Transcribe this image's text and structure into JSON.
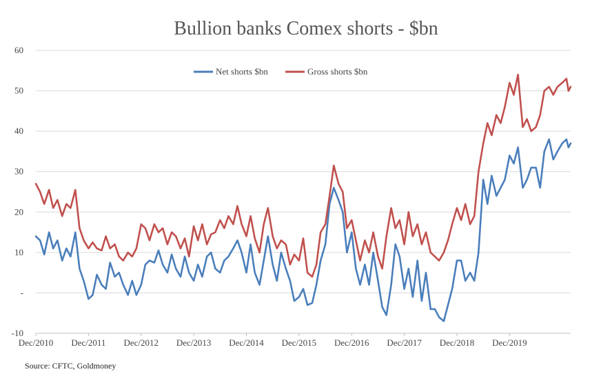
{
  "chart_data": {
    "type": "line",
    "title": "Bullion banks Comex shorts - $bn",
    "source": "Source: CFTC, Goldmoney",
    "ylim": [
      -10,
      60
    ],
    "y_ticks": [
      {
        "value": 60,
        "label": "60"
      },
      {
        "value": 50,
        "label": "50"
      },
      {
        "value": 40,
        "label": "40"
      },
      {
        "value": 30,
        "label": "30"
      },
      {
        "value": 20,
        "label": "20"
      },
      {
        "value": 10,
        "label": "10"
      },
      {
        "value": 0,
        "label": "-"
      },
      {
        "value": -10,
        "label": "-10"
      }
    ],
    "x_range": [
      2010.92,
      2021.08
    ],
    "x_ticks": [
      "Dec/2010",
      "Dec/2011",
      "Dec/2012",
      "Dec/2013",
      "Dec/2014",
      "Dec/2015",
      "Dec/2016",
      "Dec/2017",
      "Dec/2018",
      "Dec/2019"
    ],
    "x_tick_values": [
      2010.92,
      2011.92,
      2012.92,
      2013.92,
      2014.92,
      2015.92,
      2016.92,
      2017.92,
      2018.92,
      2019.92
    ],
    "grid": "horizontal",
    "legend_position": "top-center",
    "series": [
      {
        "name": "Net shorts $bn",
        "color": "#4a7ebb",
        "points": [
          [
            2010.92,
            14
          ],
          [
            2011.0,
            13
          ],
          [
            2011.08,
            9.5
          ],
          [
            2011.17,
            15
          ],
          [
            2011.25,
            11
          ],
          [
            2011.33,
            13
          ],
          [
            2011.42,
            8
          ],
          [
            2011.5,
            11
          ],
          [
            2011.58,
            9
          ],
          [
            2011.67,
            15
          ],
          [
            2011.75,
            6
          ],
          [
            2011.83,
            3
          ],
          [
            2011.92,
            -1.5
          ],
          [
            2012.0,
            -0.5
          ],
          [
            2012.08,
            4.5
          ],
          [
            2012.17,
            2
          ],
          [
            2012.25,
            1
          ],
          [
            2012.33,
            7.5
          ],
          [
            2012.42,
            4
          ],
          [
            2012.5,
            5
          ],
          [
            2012.58,
            2
          ],
          [
            2012.67,
            -0.5
          ],
          [
            2012.75,
            3
          ],
          [
            2012.83,
            -0.5
          ],
          [
            2012.92,
            2
          ],
          [
            2013.0,
            7
          ],
          [
            2013.08,
            8
          ],
          [
            2013.17,
            7.5
          ],
          [
            2013.25,
            10.5
          ],
          [
            2013.33,
            7
          ],
          [
            2013.42,
            5
          ],
          [
            2013.5,
            9.5
          ],
          [
            2013.58,
            6
          ],
          [
            2013.67,
            4
          ],
          [
            2013.75,
            9
          ],
          [
            2013.83,
            5
          ],
          [
            2013.92,
            3
          ],
          [
            2014.0,
            7
          ],
          [
            2014.08,
            4
          ],
          [
            2014.17,
            9
          ],
          [
            2014.25,
            10
          ],
          [
            2014.33,
            6
          ],
          [
            2014.42,
            5
          ],
          [
            2014.5,
            8
          ],
          [
            2014.58,
            9
          ],
          [
            2014.67,
            11
          ],
          [
            2014.75,
            13
          ],
          [
            2014.83,
            10
          ],
          [
            2014.92,
            5
          ],
          [
            2015.0,
            12
          ],
          [
            2015.08,
            5
          ],
          [
            2015.17,
            2
          ],
          [
            2015.25,
            8
          ],
          [
            2015.33,
            14
          ],
          [
            2015.42,
            7
          ],
          [
            2015.5,
            3
          ],
          [
            2015.58,
            10
          ],
          [
            2015.67,
            6
          ],
          [
            2015.75,
            3
          ],
          [
            2015.83,
            -2
          ],
          [
            2015.92,
            -1
          ],
          [
            2016.0,
            1
          ],
          [
            2016.08,
            -3
          ],
          [
            2016.17,
            -2.5
          ],
          [
            2016.25,
            2
          ],
          [
            2016.33,
            8
          ],
          [
            2016.42,
            12
          ],
          [
            2016.5,
            22
          ],
          [
            2016.58,
            26
          ],
          [
            2016.67,
            23
          ],
          [
            2016.75,
            20
          ],
          [
            2016.83,
            10
          ],
          [
            2016.92,
            15
          ],
          [
            2017.0,
            6
          ],
          [
            2017.08,
            2
          ],
          [
            2017.17,
            7
          ],
          [
            2017.25,
            2
          ],
          [
            2017.33,
            10
          ],
          [
            2017.42,
            3
          ],
          [
            2017.5,
            -3.5
          ],
          [
            2017.58,
            -5.5
          ],
          [
            2017.67,
            2
          ],
          [
            2017.75,
            12
          ],
          [
            2017.83,
            9
          ],
          [
            2017.92,
            1
          ],
          [
            2018.0,
            6
          ],
          [
            2018.08,
            -1
          ],
          [
            2018.17,
            8
          ],
          [
            2018.25,
            -2
          ],
          [
            2018.33,
            5
          ],
          [
            2018.42,
            -4
          ],
          [
            2018.5,
            -4
          ],
          [
            2018.58,
            -6
          ],
          [
            2018.67,
            -7
          ],
          [
            2018.75,
            -3
          ],
          [
            2018.83,
            1
          ],
          [
            2018.92,
            8
          ],
          [
            2019.0,
            8
          ],
          [
            2019.08,
            3
          ],
          [
            2019.17,
            5
          ],
          [
            2019.25,
            3
          ],
          [
            2019.33,
            10
          ],
          [
            2019.42,
            28
          ],
          [
            2019.5,
            22
          ],
          [
            2019.58,
            29
          ],
          [
            2019.67,
            24
          ],
          [
            2019.75,
            26
          ],
          [
            2019.83,
            28
          ],
          [
            2019.92,
            34
          ],
          [
            2020.0,
            32
          ],
          [
            2020.08,
            36
          ],
          [
            2020.17,
            26
          ],
          [
            2020.25,
            28
          ],
          [
            2020.33,
            31
          ],
          [
            2020.42,
            31
          ],
          [
            2020.5,
            26
          ],
          [
            2020.58,
            35
          ],
          [
            2020.67,
            38
          ],
          [
            2020.75,
            33
          ],
          [
            2020.83,
            35
          ],
          [
            2020.92,
            37
          ],
          [
            2021.0,
            38
          ],
          [
            2021.04,
            36
          ],
          [
            2021.08,
            37
          ]
        ]
      },
      {
        "name": "Gross shorts $bn",
        "color": "#c0504d",
        "points": [
          [
            2010.92,
            27
          ],
          [
            2011.0,
            25
          ],
          [
            2011.08,
            22
          ],
          [
            2011.17,
            25.5
          ],
          [
            2011.25,
            21
          ],
          [
            2011.33,
            23
          ],
          [
            2011.42,
            19
          ],
          [
            2011.5,
            22
          ],
          [
            2011.58,
            21
          ],
          [
            2011.67,
            25.5
          ],
          [
            2011.75,
            16
          ],
          [
            2011.83,
            13
          ],
          [
            2011.92,
            11
          ],
          [
            2012.0,
            12.5
          ],
          [
            2012.08,
            11
          ],
          [
            2012.17,
            10.5
          ],
          [
            2012.25,
            14
          ],
          [
            2012.33,
            11
          ],
          [
            2012.42,
            12
          ],
          [
            2012.5,
            9
          ],
          [
            2012.58,
            8
          ],
          [
            2012.67,
            10
          ],
          [
            2012.75,
            9
          ],
          [
            2012.83,
            11
          ],
          [
            2012.92,
            17
          ],
          [
            2013.0,
            16
          ],
          [
            2013.08,
            13
          ],
          [
            2013.17,
            17
          ],
          [
            2013.25,
            15
          ],
          [
            2013.33,
            16
          ],
          [
            2013.42,
            12
          ],
          [
            2013.5,
            15
          ],
          [
            2013.58,
            14
          ],
          [
            2013.67,
            11
          ],
          [
            2013.75,
            13.5
          ],
          [
            2013.83,
            9
          ],
          [
            2013.92,
            16.5
          ],
          [
            2014.0,
            13
          ],
          [
            2014.08,
            17
          ],
          [
            2014.17,
            12
          ],
          [
            2014.25,
            14.5
          ],
          [
            2014.33,
            15
          ],
          [
            2014.42,
            18
          ],
          [
            2014.5,
            16
          ],
          [
            2014.58,
            19
          ],
          [
            2014.67,
            17
          ],
          [
            2014.75,
            21.5
          ],
          [
            2014.83,
            17
          ],
          [
            2014.92,
            14
          ],
          [
            2015.0,
            19
          ],
          [
            2015.08,
            13.5
          ],
          [
            2015.17,
            10
          ],
          [
            2015.25,
            17
          ],
          [
            2015.33,
            21
          ],
          [
            2015.42,
            14
          ],
          [
            2015.5,
            11
          ],
          [
            2015.58,
            13
          ],
          [
            2015.67,
            12
          ],
          [
            2015.75,
            7
          ],
          [
            2015.83,
            9.5
          ],
          [
            2015.92,
            8
          ],
          [
            2016.0,
            13.5
          ],
          [
            2016.08,
            5
          ],
          [
            2016.17,
            4
          ],
          [
            2016.25,
            7
          ],
          [
            2016.33,
            15
          ],
          [
            2016.42,
            17
          ],
          [
            2016.5,
            24
          ],
          [
            2016.58,
            31.5
          ],
          [
            2016.67,
            27
          ],
          [
            2016.75,
            25
          ],
          [
            2016.83,
            16
          ],
          [
            2016.92,
            18
          ],
          [
            2017.0,
            13
          ],
          [
            2017.08,
            8
          ],
          [
            2017.17,
            13
          ],
          [
            2017.25,
            10
          ],
          [
            2017.33,
            15
          ],
          [
            2017.42,
            9
          ],
          [
            2017.5,
            6
          ],
          [
            2017.58,
            14
          ],
          [
            2017.67,
            21
          ],
          [
            2017.75,
            16
          ],
          [
            2017.83,
            18
          ],
          [
            2017.92,
            12
          ],
          [
            2018.0,
            20
          ],
          [
            2018.08,
            14
          ],
          [
            2018.17,
            17
          ],
          [
            2018.25,
            12
          ],
          [
            2018.33,
            15
          ],
          [
            2018.42,
            10
          ],
          [
            2018.5,
            9
          ],
          [
            2018.58,
            8
          ],
          [
            2018.67,
            10
          ],
          [
            2018.75,
            13
          ],
          [
            2018.83,
            17
          ],
          [
            2018.92,
            21
          ],
          [
            2019.0,
            18
          ],
          [
            2019.08,
            22
          ],
          [
            2019.17,
            17
          ],
          [
            2019.25,
            19
          ],
          [
            2019.33,
            30
          ],
          [
            2019.42,
            37
          ],
          [
            2019.5,
            42
          ],
          [
            2019.58,
            39
          ],
          [
            2019.67,
            44
          ],
          [
            2019.75,
            42
          ],
          [
            2019.83,
            46
          ],
          [
            2019.92,
            52
          ],
          [
            2020.0,
            49
          ],
          [
            2020.08,
            54
          ],
          [
            2020.17,
            41
          ],
          [
            2020.25,
            43
          ],
          [
            2020.33,
            40
          ],
          [
            2020.42,
            41
          ],
          [
            2020.5,
            44
          ],
          [
            2020.58,
            50
          ],
          [
            2020.67,
            51
          ],
          [
            2020.75,
            49
          ],
          [
            2020.83,
            51
          ],
          [
            2020.92,
            52
          ],
          [
            2021.0,
            53
          ],
          [
            2021.04,
            50
          ],
          [
            2021.08,
            51
          ]
        ]
      }
    ]
  }
}
